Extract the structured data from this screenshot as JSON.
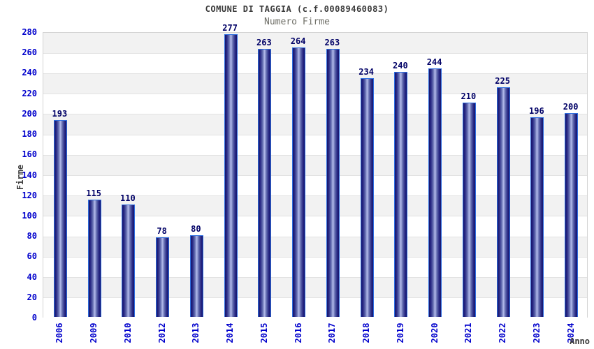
{
  "chart_data": {
    "type": "bar",
    "title": "COMUNE DI TAGGIA (c.f.00089460083)",
    "subtitle": "Numero Firme",
    "xlabel": "Anno",
    "ylabel": "Firme",
    "categories": [
      "2006",
      "2009",
      "2010",
      "2012",
      "2013",
      "2014",
      "2015",
      "2016",
      "2017",
      "2018",
      "2019",
      "2020",
      "2021",
      "2022",
      "2023",
      "2024"
    ],
    "values": [
      193,
      115,
      110,
      78,
      80,
      277,
      263,
      264,
      263,
      234,
      240,
      244,
      210,
      225,
      196,
      200
    ],
    "ylim": [
      0,
      280
    ],
    "ytick_step": 20,
    "grid": "horizontal alternating bands",
    "legend": "none"
  },
  "colors": {
    "title": "#3a3a3a",
    "subtitle": "#6e6e66",
    "tick_label": "#0000cc",
    "value_label": "#000066",
    "axis_label": "#3a3a3a",
    "bar_border": "#2e6ee0",
    "bar_dark": "#13136d",
    "bar_mid_dark": "#2a2a85",
    "bar_mid": "#6670b2",
    "bar_light": "#b4bcec",
    "band_gray": "#f2f2f2",
    "band_white": "#ffffff",
    "grid_line": "#e2e2e2",
    "plot_border": "#d3d3d3"
  }
}
